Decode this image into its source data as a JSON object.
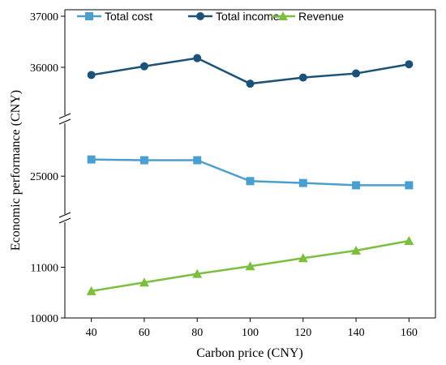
{
  "chart_data": {
    "type": "line",
    "xlabel": "Carbon price (CNY)",
    "ylabel": "Economic performance (CNY)",
    "x": [
      40,
      60,
      80,
      100,
      120,
      140,
      160
    ],
    "xlim": [
      30,
      170
    ],
    "y_ticks": [
      "37000",
      "36000",
      "25000",
      "11000",
      "10000"
    ],
    "y_axis_breaks": [
      "between 25000 and 36000",
      "between 11000 and 25000"
    ],
    "legend_position": "top",
    "series": [
      {
        "name": "Total cost",
        "color": "#4a9fd0",
        "marker": "square",
        "values": [
          25440,
          25420,
          25420,
          24870,
          24820,
          24760,
          24760
        ]
      },
      {
        "name": "Total income",
        "color": "#1b5279",
        "marker": "circle",
        "values": [
          35850,
          36020,
          36180,
          35680,
          35800,
          35880,
          36060
        ]
      },
      {
        "name": "Revenue",
        "color": "#7cbf3e",
        "marker": "triangle",
        "values": [
          10530,
          10700,
          10870,
          11020,
          11180,
          11330,
          11520
        ]
      }
    ]
  }
}
